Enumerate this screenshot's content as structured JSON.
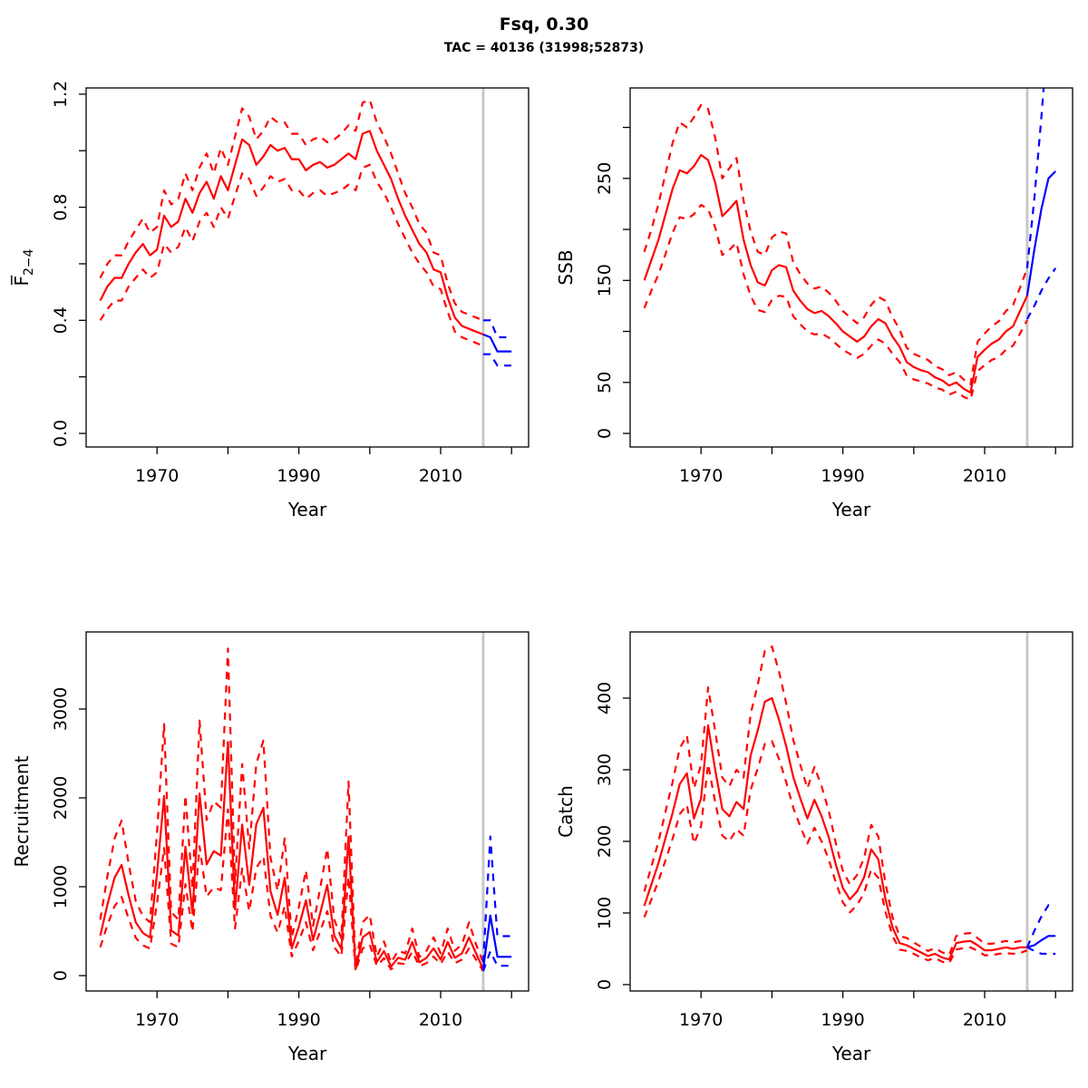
{
  "title": "Fsq, 0.30",
  "subtitle": "TAC = 40136 (31998;52873)",
  "colors": {
    "history": "#FF0000",
    "forecast": "#0000FF",
    "divider": "#C8C8C8",
    "axis": "#000000"
  },
  "divider_year": 2016,
  "chart_data": [
    {
      "id": "fbar",
      "type": "line",
      "ylabel": "F̅",
      "ylabel_sub": "2−4",
      "xlabel": "Year",
      "legend": "none",
      "grid": false,
      "xlim": [
        1960.0,
        2022.4
      ],
      "ylim": [
        -0.048,
        1.222
      ],
      "xticks": [
        {
          "v": 1970,
          "label": "1970"
        },
        {
          "v": 1980
        },
        {
          "v": 1990,
          "label": "1990"
        },
        {
          "v": 2000
        },
        {
          "v": 2010,
          "label": "2010"
        },
        {
          "v": 2020
        }
      ],
      "yticks": [
        {
          "v": 0,
          "label": "0.0"
        },
        {
          "v": 0.2
        },
        {
          "v": 0.4,
          "label": "0.4"
        },
        {
          "v": 0.6
        },
        {
          "v": 0.8,
          "label": "0.8"
        },
        {
          "v": 1.0
        },
        {
          "v": 1.2,
          "label": "1.2"
        }
      ],
      "series": {
        "year_start": 1962,
        "median": [
          0.47,
          0.52,
          0.55,
          0.55,
          0.6,
          0.64,
          0.67,
          0.63,
          0.65,
          0.77,
          0.73,
          0.75,
          0.83,
          0.78,
          0.85,
          0.89,
          0.83,
          0.91,
          0.86,
          0.95,
          1.04,
          1.02,
          0.95,
          0.98,
          1.02,
          1.0,
          1.01,
          0.97,
          0.97,
          0.93,
          0.95,
          0.96,
          0.94,
          0.95,
          0.97,
          0.99,
          0.97,
          1.06,
          1.07,
          1.0,
          0.95,
          0.9,
          0.83,
          0.77,
          0.72,
          0.67,
          0.64,
          0.58,
          0.57,
          0.48,
          0.41,
          0.38,
          0.37,
          0.36,
          0.35
        ],
        "hi": [
          0.55,
          0.6,
          0.63,
          0.63,
          0.68,
          0.72,
          0.76,
          0.71,
          0.73,
          0.86,
          0.81,
          0.83,
          0.92,
          0.86,
          0.94,
          0.99,
          0.92,
          1.01,
          0.95,
          1.05,
          1.15,
          1.12,
          1.04,
          1.07,
          1.12,
          1.1,
          1.1,
          1.06,
          1.06,
          1.02,
          1.04,
          1.05,
          1.03,
          1.04,
          1.06,
          1.09,
          1.07,
          1.17,
          1.18,
          1.1,
          1.05,
          0.99,
          0.92,
          0.85,
          0.8,
          0.74,
          0.71,
          0.64,
          0.63,
          0.53,
          0.46,
          0.43,
          0.42,
          0.41,
          0.4
        ],
        "lo": [
          0.4,
          0.44,
          0.47,
          0.47,
          0.52,
          0.55,
          0.58,
          0.55,
          0.57,
          0.67,
          0.64,
          0.66,
          0.73,
          0.68,
          0.75,
          0.78,
          0.73,
          0.8,
          0.76,
          0.84,
          0.92,
          0.9,
          0.84,
          0.87,
          0.91,
          0.89,
          0.9,
          0.86,
          0.86,
          0.83,
          0.85,
          0.86,
          0.84,
          0.85,
          0.86,
          0.88,
          0.86,
          0.94,
          0.95,
          0.89,
          0.85,
          0.8,
          0.74,
          0.69,
          0.64,
          0.6,
          0.57,
          0.52,
          0.51,
          0.43,
          0.36,
          0.34,
          0.33,
          0.32,
          0.31
        ],
        "forecast_years": [
          2016,
          2017,
          2018,
          2019,
          2020
        ],
        "forecast_median": [
          0.35,
          0.34,
          0.29,
          0.29,
          0.29
        ],
        "forecast_hi": [
          0.4,
          0.4,
          0.34,
          0.34,
          0.34
        ],
        "forecast_lo": [
          0.28,
          0.28,
          0.24,
          0.24,
          0.24
        ]
      }
    },
    {
      "id": "ssb",
      "type": "line",
      "ylabel": "SSB",
      "xlabel": "Year",
      "legend": "none",
      "grid": false,
      "xlim": [
        1960.0,
        2022.4
      ],
      "ylim": [
        -13.3,
        338.7
      ],
      "xticks": [
        {
          "v": 1970,
          "label": "1970"
        },
        {
          "v": 1980
        },
        {
          "v": 1990,
          "label": "1990"
        },
        {
          "v": 2000
        },
        {
          "v": 2010,
          "label": "2010"
        },
        {
          "v": 2020
        }
      ],
      "yticks": [
        {
          "v": 0,
          "label": "0"
        },
        {
          "v": 50,
          "label": "50"
        },
        {
          "v": 100
        },
        {
          "v": 150,
          "label": "150"
        },
        {
          "v": 200
        },
        {
          "v": 250,
          "label": "250"
        },
        {
          "v": 300
        }
      ],
      "series": {
        "year_start": 1962,
        "median": [
          150,
          170,
          190,
          215,
          240,
          258,
          255,
          262,
          273,
          268,
          246,
          213,
          220,
          228,
          190,
          165,
          148,
          145,
          160,
          165,
          163,
          140,
          130,
          122,
          118,
          120,
          115,
          108,
          100,
          95,
          90,
          95,
          105,
          112,
          108,
          95,
          85,
          70,
          65,
          62,
          60,
          55,
          52,
          47,
          50,
          44,
          40,
          75,
          82,
          88,
          92,
          100,
          105,
          120,
          135
        ],
        "hi": [
          178,
          200,
          225,
          255,
          285,
          305,
          300,
          310,
          322,
          318,
          290,
          250,
          260,
          270,
          228,
          198,
          178,
          175,
          192,
          198,
          196,
          168,
          156,
          147,
          142,
          144,
          138,
          130,
          120,
          114,
          108,
          114,
          126,
          134,
          130,
          114,
          102,
          84,
          78,
          75,
          72,
          66,
          63,
          57,
          60,
          53,
          48,
          90,
          98,
          105,
          110,
          120,
          126,
          143,
          162
        ],
        "lo": [
          123,
          140,
          156,
          176,
          197,
          212,
          210,
          215,
          224,
          220,
          202,
          175,
          180,
          187,
          156,
          135,
          121,
          119,
          131,
          135,
          134,
          115,
          107,
          100,
          97,
          98,
          94,
          88,
          82,
          78,
          74,
          78,
          86,
          92,
          88,
          78,
          70,
          57,
          53,
          51,
          49,
          45,
          43,
          38,
          41,
          36,
          33,
          61,
          67,
          72,
          75,
          82,
          86,
          98,
          111
        ],
        "forecast_years": [
          2016,
          2017,
          2018,
          2019,
          2020
        ],
        "forecast_median": [
          135,
          180,
          220,
          250,
          257
        ],
        "forecast_hi": [
          162,
          230,
          310,
          400,
          470
        ],
        "forecast_lo": [
          112,
          125,
          140,
          152,
          162
        ]
      }
    },
    {
      "id": "recruitment",
      "type": "line",
      "ylabel": "Recruitment",
      "xlabel": "Year",
      "legend": "none",
      "grid": false,
      "xlim": [
        1960.0,
        2022.4
      ],
      "ylim": [
        -173,
        3867
      ],
      "xticks": [
        {
          "v": 1970,
          "label": "1970"
        },
        {
          "v": 1980
        },
        {
          "v": 1990,
          "label": "1990"
        },
        {
          "v": 2000
        },
        {
          "v": 2010,
          "label": "2010"
        },
        {
          "v": 2020
        }
      ],
      "yticks": [
        {
          "v": 0,
          "label": "0"
        },
        {
          "v": 1000,
          "label": "1000"
        },
        {
          "v": 2000,
          "label": "2000"
        },
        {
          "v": 3000,
          "label": "3000"
        }
      ],
      "series": {
        "year_start": 1962,
        "median": [
          450,
          800,
          1100,
          1245,
          900,
          600,
          480,
          430,
          1150,
          2020,
          510,
          450,
          1450,
          700,
          2050,
          1250,
          1400,
          1350,
          2630,
          745,
          1700,
          1020,
          1704,
          1888,
          950,
          683,
          1102,
          306,
          550,
          847,
          400,
          700,
          1020,
          450,
          300,
          1561,
          71,
          430,
          490,
          153,
          276,
          102,
          200,
          180,
          378,
          150,
          200,
          306,
          180,
          378,
          200,
          250,
          429,
          250,
          71
        ],
        "hi": [
          630,
          1120,
          1540,
          1745,
          1260,
          840,
          670,
          600,
          1610,
          2830,
          715,
          630,
          2030,
          980,
          2870,
          1750,
          1960,
          1890,
          3680,
          1040,
          2380,
          1430,
          2385,
          2645,
          1330,
          955,
          1545,
          430,
          770,
          1185,
          560,
          980,
          1430,
          630,
          420,
          2185,
          100,
          600,
          685,
          215,
          385,
          145,
          280,
          250,
          530,
          210,
          280,
          430,
          250,
          530,
          280,
          350,
          600,
          350,
          150
        ],
        "lo": [
          320,
          570,
          780,
          885,
          640,
          425,
          340,
          305,
          815,
          1435,
          360,
          320,
          1030,
          495,
          1455,
          890,
          995,
          960,
          1870,
          530,
          1205,
          725,
          1210,
          1340,
          675,
          485,
          780,
          215,
          390,
          600,
          285,
          495,
          725,
          320,
          215,
          1110,
          50,
          305,
          350,
          110,
          195,
          70,
          140,
          130,
          270,
          105,
          140,
          215,
          130,
          270,
          140,
          180,
          305,
          180,
          50
        ],
        "forecast_years": [
          2016,
          2017,
          2018,
          2019,
          2020
        ],
        "forecast_median": [
          71,
          677,
          212,
          212,
          212
        ],
        "forecast_hi": [
          150,
          1565,
          444,
          444,
          444
        ],
        "forecast_lo": [
          50,
          273,
          111,
          111,
          111
        ]
      }
    },
    {
      "id": "catch",
      "type": "line",
      "ylabel": "Catch",
      "xlabel": "Year",
      "legend": "none",
      "grid": false,
      "xlim": [
        1960.0,
        2022.4
      ],
      "ylim": [
        -8.9,
        492.4
      ],
      "xticks": [
        {
          "v": 1970,
          "label": "1970"
        },
        {
          "v": 1980
        },
        {
          "v": 1990,
          "label": "1990"
        },
        {
          "v": 2000
        },
        {
          "v": 2010,
          "label": "2010"
        },
        {
          "v": 2020
        }
      ],
      "yticks": [
        {
          "v": 0,
          "label": "0"
        },
        {
          "v": 100,
          "label": "100"
        },
        {
          "v": 200,
          "label": "200"
        },
        {
          "v": 300,
          "label": "300"
        },
        {
          "v": 400,
          "label": "400"
        }
      ],
      "series": {
        "year_start": 1962,
        "median": [
          110,
          140,
          170,
          205,
          240,
          280,
          295,
          232,
          260,
          362,
          300,
          245,
          235,
          255,
          245,
          320,
          355,
          395,
          400,
          370,
          333,
          290,
          260,
          232,
          258,
          235,
          206,
          168,
          135,
          119,
          130,
          150,
          189,
          175,
          120,
          80,
          58,
          55,
          50,
          45,
          40,
          43,
          38,
          35,
          58,
          60,
          61,
          55,
          48,
          48,
          50,
          52,
          50,
          52,
          52
        ],
        "hi": [
          130,
          165,
          200,
          242,
          283,
          330,
          348,
          274,
          307,
          415,
          354,
          289,
          277,
          300,
          289,
          378,
          419,
          466,
          472,
          437,
          393,
          342,
          307,
          274,
          304,
          277,
          243,
          198,
          159,
          140,
          153,
          177,
          223,
          207,
          142,
          94,
          68,
          65,
          59,
          53,
          47,
          51,
          45,
          41,
          68,
          71,
          72,
          65,
          57,
          57,
          59,
          61,
          59,
          61,
          57
        ],
        "lo": [
          94,
          119,
          145,
          174,
          204,
          238,
          251,
          197,
          221,
          308,
          255,
          208,
          200,
          217,
          208,
          272,
          302,
          336,
          340,
          315,
          283,
          247,
          221,
          197,
          219,
          200,
          175,
          143,
          115,
          101,
          111,
          128,
          161,
          149,
          102,
          68,
          49,
          47,
          43,
          38,
          34,
          37,
          32,
          30,
          49,
          51,
          52,
          47,
          41,
          41,
          43,
          44,
          43,
          44,
          48
        ],
        "forecast_years": [
          2016,
          2017,
          2018,
          2019,
          2020
        ],
        "forecast_median": [
          52,
          55,
          62,
          68,
          68
        ],
        "forecast_hi": [
          52,
          75,
          95,
          111,
          111
        ],
        "forecast_lo": [
          52,
          47,
          43,
          43,
          43
        ]
      }
    }
  ]
}
